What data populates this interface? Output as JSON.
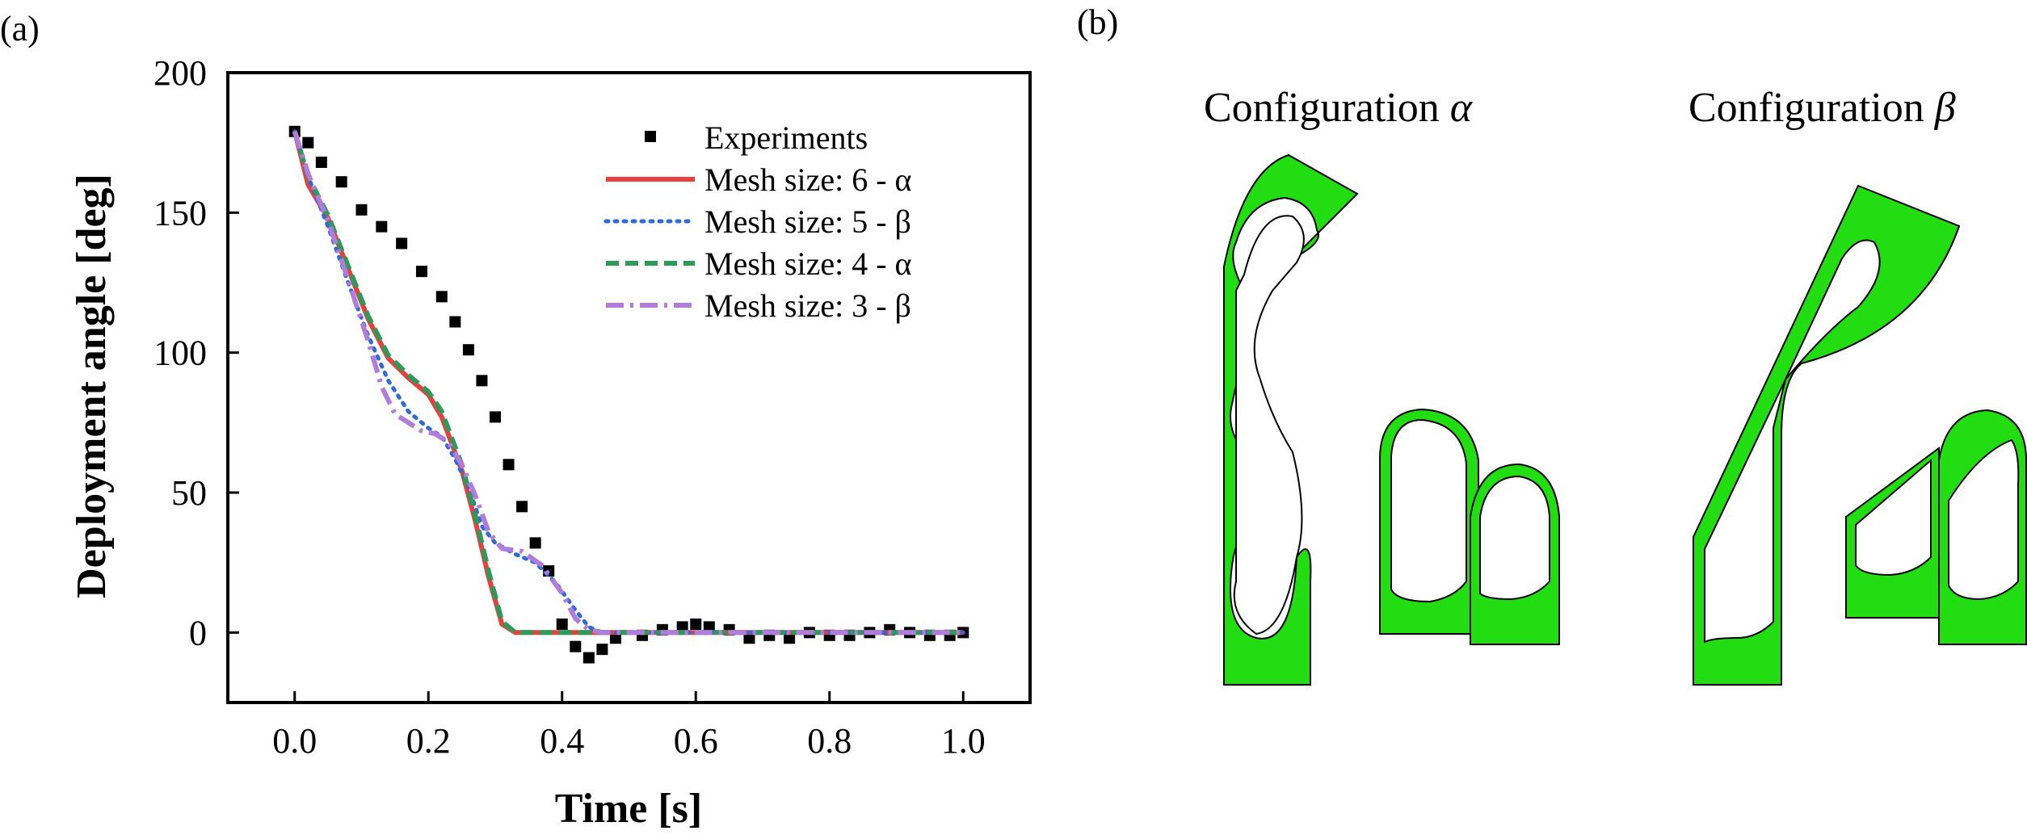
{
  "panel_a_label": "(a)",
  "panel_b_label": "(b)",
  "colors": {
    "experiments": "#000000",
    "mesh6": "#e8403c",
    "mesh5": "#2f6bd6",
    "mesh4": "#2e9a5a",
    "mesh3": "#b07ddc",
    "shell_fill": "#22dd11",
    "shell_dark": "#119900"
  },
  "panel_b": {
    "config_alpha": {
      "prefix": "Configuration ",
      "symbol": "α"
    },
    "config_beta": {
      "prefix": "Configuration ",
      "symbol": "β"
    }
  },
  "chart_data": {
    "type": "scatter",
    "xlabel": "Time [s]",
    "ylabel": "Deployment angle [deg]",
    "xlim": [
      -0.1,
      1.1
    ],
    "ylim": [
      -25,
      200
    ],
    "xticks": [
      0.0,
      0.2,
      0.4,
      0.6,
      0.8,
      1.0
    ],
    "xtick_labels": [
      "0.0",
      "0.2",
      "0.4",
      "0.6",
      "0.8",
      "1.0"
    ],
    "yticks": [
      0,
      50,
      100,
      150,
      200
    ],
    "ytick_labels": [
      "0",
      "50",
      "100",
      "150",
      "200"
    ],
    "legend_position": "top-right",
    "series": [
      {
        "name": "Experiments",
        "style": "square-markers",
        "x": [
          0.0,
          0.02,
          0.04,
          0.07,
          0.1,
          0.13,
          0.16,
          0.19,
          0.22,
          0.24,
          0.26,
          0.28,
          0.3,
          0.32,
          0.34,
          0.36,
          0.38,
          0.4,
          0.42,
          0.44,
          0.46,
          0.48,
          0.52,
          0.55,
          0.58,
          0.6,
          0.62,
          0.65,
          0.68,
          0.71,
          0.74,
          0.77,
          0.8,
          0.83,
          0.86,
          0.89,
          0.92,
          0.95,
          0.98,
          1.0
        ],
        "y": [
          179,
          175,
          168,
          161,
          151,
          145,
          139,
          129,
          120,
          111,
          101,
          90,
          77,
          60,
          45,
          32,
          22,
          3,
          -5,
          -9,
          -6,
          -2,
          -1,
          1,
          2,
          3,
          2,
          1,
          -2,
          -1,
          -2,
          0,
          -1,
          -1,
          0,
          1,
          0,
          -1,
          -1,
          0
        ]
      },
      {
        "name": "Mesh size: 6 - α",
        "style": "solid",
        "x": [
          0.0,
          0.02,
          0.05,
          0.08,
          0.11,
          0.14,
          0.17,
          0.2,
          0.22,
          0.25,
          0.27,
          0.29,
          0.31,
          0.33,
          0.36,
          0.4,
          0.5,
          0.6,
          0.7,
          0.8,
          0.9,
          1.0
        ],
        "y": [
          179,
          160,
          148,
          130,
          112,
          98,
          91,
          85,
          77,
          58,
          40,
          20,
          3,
          0,
          0,
          0,
          0,
          0,
          0,
          0,
          0,
          0
        ]
      },
      {
        "name": "Mesh size: 5 - β",
        "style": "dotted",
        "x": [
          0.0,
          0.02,
          0.05,
          0.08,
          0.11,
          0.14,
          0.17,
          0.2,
          0.22,
          0.24,
          0.26,
          0.28,
          0.3,
          0.33,
          0.36,
          0.39,
          0.42,
          0.44,
          0.46,
          0.5,
          0.6,
          0.7,
          0.8,
          0.9,
          1.0
        ],
        "y": [
          179,
          163,
          145,
          125,
          106,
          90,
          79,
          73,
          70,
          62,
          52,
          38,
          32,
          28,
          25,
          18,
          8,
          2,
          0,
          0,
          0,
          0,
          0,
          0,
          0
        ]
      },
      {
        "name": "Mesh size: 4 - α",
        "style": "dashed",
        "x": [
          0.0,
          0.02,
          0.05,
          0.08,
          0.11,
          0.14,
          0.17,
          0.2,
          0.22,
          0.25,
          0.27,
          0.29,
          0.31,
          0.33,
          0.36,
          0.4,
          0.5,
          0.6,
          0.7,
          0.8,
          0.9,
          1.0
        ],
        "y": [
          179,
          163,
          149,
          131,
          113,
          99,
          92,
          86,
          79,
          60,
          42,
          22,
          4,
          0,
          0,
          0,
          0,
          0,
          0,
          0,
          0,
          0
        ]
      },
      {
        "name": "Mesh size: 3 - β",
        "style": "dash-dot",
        "x": [
          0.0,
          0.02,
          0.05,
          0.08,
          0.11,
          0.13,
          0.15,
          0.17,
          0.19,
          0.21,
          0.23,
          0.25,
          0.27,
          0.29,
          0.31,
          0.34,
          0.37,
          0.4,
          0.42,
          0.44,
          0.46,
          0.5,
          0.6,
          0.7,
          0.8,
          0.9,
          1.0
        ],
        "y": [
          179,
          164,
          147,
          126,
          104,
          88,
          78,
          75,
          72,
          71,
          68,
          60,
          49,
          36,
          30,
          29,
          24,
          14,
          5,
          1,
          0,
          0,
          0,
          0,
          0,
          0,
          0
        ]
      }
    ]
  }
}
